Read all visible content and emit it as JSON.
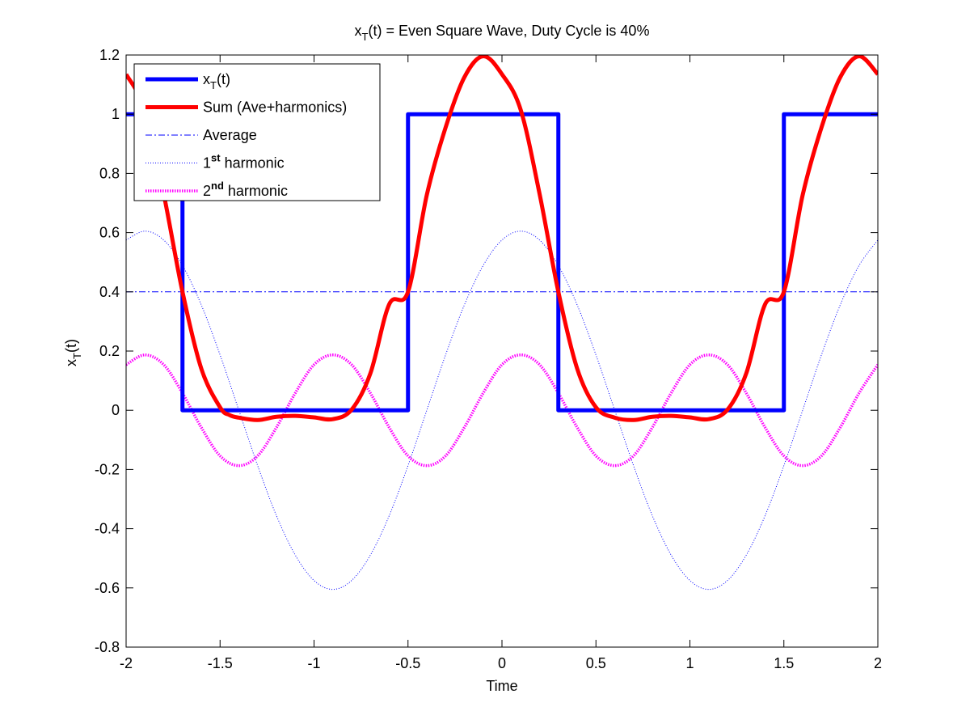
{
  "chart_data": {
    "type": "line",
    "title": {
      "base": "x",
      "sub": "T",
      "rest": "(t) = Even Square Wave, Duty Cycle is 40%"
    },
    "xlabel": "Time",
    "ylabel": {
      "base": "x",
      "sub": "T",
      "rest": "(t)"
    },
    "xlim": [
      -2,
      2
    ],
    "ylim": [
      -0.8,
      1.2
    ],
    "xticks": [
      -2,
      -1.5,
      -1,
      -0.5,
      0,
      0.5,
      1,
      1.5,
      2
    ],
    "xtick_labels": [
      "-2",
      "-1.5",
      "-1",
      "-0.5",
      "0",
      "0.5",
      "1",
      "1.5",
      "2"
    ],
    "yticks": [
      -0.8,
      -0.6,
      -0.4,
      -0.2,
      0,
      0.2,
      0.4,
      0.6,
      0.8,
      1,
      1.2
    ],
    "ytick_labels": [
      "-0.8",
      "-0.6",
      "-0.4",
      "-0.2",
      "0",
      "0.2",
      "0.4",
      "0.6",
      "0.8",
      "1",
      "1.2"
    ],
    "grid": false,
    "legend_position": "top-left",
    "series": [
      {
        "key": "square",
        "legend": {
          "base": "x",
          "sub": "T",
          "rest": "(t)"
        },
        "color": "#0000ff",
        "style": "solid-thick",
        "x": [
          -2,
          -1.7,
          -1.7,
          -0.5,
          -0.5,
          0.3,
          0.3,
          1.5,
          1.5,
          2
        ],
        "y": [
          1,
          1,
          0,
          0,
          1,
          1,
          0,
          0,
          1,
          1
        ]
      },
      {
        "key": "sum",
        "legend": {
          "base": "Sum (Ave+harmonics)"
        },
        "color": "#ff0000",
        "style": "solid-thick",
        "x": [
          -2,
          -1.9,
          -1.8,
          -1.7,
          -1.6,
          -1.5,
          -1.45,
          -1.4,
          -1.3,
          -1.2,
          -1.1,
          -1.0,
          -0.9,
          -0.8,
          -0.7,
          -0.6,
          -0.5,
          -0.4,
          -0.3,
          -0.2,
          -0.1,
          0,
          0.1,
          0.2,
          0.3,
          0.4,
          0.5,
          0.6,
          0.7,
          0.8,
          0.9,
          1.0,
          1.1,
          1.2,
          1.3,
          1.4,
          1.5,
          1.6,
          1.7,
          1.8,
          1.9,
          2.0
        ],
        "y": [
          1.135,
          1.014,
          0.731,
          0.4,
          0.141,
          0.01,
          -0.016,
          -0.025,
          -0.033,
          -0.022,
          -0.019,
          -0.024,
          -0.03,
          0.002,
          0.125,
          0.358,
          0.4,
          0.727,
          0.955,
          1.125,
          1.196,
          1.135,
          1.014,
          0.731,
          0.4,
          0.141,
          0.01,
          -0.025,
          -0.033,
          -0.022,
          -0.019,
          -0.024,
          -0.03,
          0.002,
          0.125,
          0.358,
          0.4,
          0.727,
          0.955,
          1.125,
          1.196,
          1.135
        ]
      },
      {
        "key": "average",
        "legend": {
          "base": "Average"
        },
        "color": "#0000ff",
        "style": "dashdot",
        "x": [
          -2,
          2
        ],
        "y": [
          0.4,
          0.4
        ]
      },
      {
        "key": "h1",
        "legend": {
          "base": "1",
          "sup": "st",
          "rest": " harmonic"
        },
        "color": "#0000ff",
        "style": "dotted-thin",
        "x": [
          -2,
          -1.9,
          -1.8,
          -1.7,
          -1.6,
          -1.5,
          -1.4,
          -1.3,
          -1.2,
          -1.1,
          -1.0,
          -0.9,
          -0.8,
          -0.7,
          -0.6,
          -0.5,
          -0.4,
          -0.3,
          -0.2,
          -0.1,
          0,
          0.1,
          0.2,
          0.3,
          0.4,
          0.5,
          0.6,
          0.7,
          0.8,
          0.9,
          1.0,
          1.1,
          1.2,
          1.3,
          1.4,
          1.5,
          1.6,
          1.7,
          1.8,
          1.9,
          2.0
        ],
        "y": [
          0.575,
          0.605,
          0.575,
          0.489,
          0.356,
          0.187,
          0.0,
          -0.187,
          -0.356,
          -0.489,
          -0.575,
          -0.605,
          -0.575,
          -0.489,
          -0.356,
          -0.187,
          0.0,
          0.187,
          0.356,
          0.489,
          0.575,
          0.605,
          0.575,
          0.489,
          0.356,
          0.187,
          0.0,
          -0.187,
          -0.356,
          -0.489,
          -0.575,
          -0.605,
          -0.575,
          -0.489,
          -0.356,
          -0.187,
          0.0,
          0.187,
          0.356,
          0.489,
          0.575
        ]
      },
      {
        "key": "h2",
        "legend": {
          "base": "2",
          "sup": "nd",
          "rest": " harmonic"
        },
        "color": "#ff00ff",
        "style": "dotted-thick",
        "x": [
          -2,
          -1.9,
          -1.8,
          -1.7,
          -1.6,
          -1.5,
          -1.4,
          -1.3,
          -1.2,
          -1.1,
          -1.0,
          -0.9,
          -0.8,
          -0.7,
          -0.6,
          -0.5,
          -0.4,
          -0.3,
          -0.2,
          -0.1,
          0,
          0.1,
          0.2,
          0.3,
          0.4,
          0.5,
          0.6,
          0.7,
          0.8,
          0.9,
          1.0,
          1.1,
          1.2,
          1.3,
          1.4,
          1.5,
          1.6,
          1.7,
          1.8,
          1.9,
          2.0
        ],
        "y": [
          0.154,
          0.187,
          0.154,
          0.058,
          -0.058,
          -0.154,
          -0.187,
          -0.154,
          -0.058,
          0.058,
          0.154,
          0.187,
          0.154,
          0.058,
          -0.058,
          -0.154,
          -0.187,
          -0.154,
          -0.058,
          0.058,
          0.154,
          0.187,
          0.154,
          0.058,
          -0.058,
          -0.154,
          -0.187,
          -0.154,
          -0.058,
          0.058,
          0.154,
          0.187,
          0.154,
          0.058,
          -0.058,
          -0.154,
          -0.187,
          -0.154,
          -0.058,
          0.058,
          0.154
        ]
      }
    ]
  }
}
